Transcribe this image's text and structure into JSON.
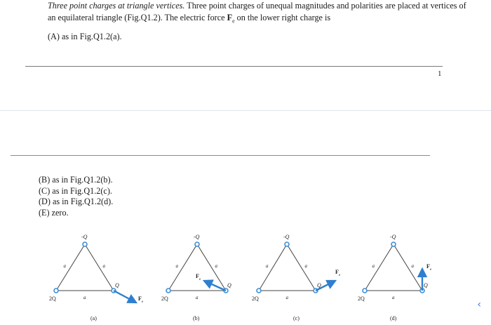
{
  "question": {
    "title": "Three point charges at triangle vertices.",
    "body": "Three point charges of unequal magnitudes and polarities are placed at vertices of an equilateral triangle (Fig.Q1.2). The electric force",
    "force_symbol": "F",
    "force_sub": "e",
    "body_end": "on the lower right charge is"
  },
  "options": {
    "a": "(A)  as in Fig.Q1.2(a).",
    "b": "(B)  as in Fig.Q1.2(b).",
    "c": "(C)  as in Fig.Q1.2(c).",
    "d": "(D)  as in Fig.Q1.2(d).",
    "e": "(E)  zero."
  },
  "page_number": "1",
  "figure": {
    "charge_top": "-Q",
    "charge_left": "2Q",
    "charge_right": "Q",
    "side_label": "a",
    "force_label": "F",
    "force_sub": "e",
    "captions": [
      "(a)",
      "(b)",
      "(c)",
      "(d)"
    ]
  },
  "colors": {
    "charge": "#3d8fd6",
    "vector": "#2f7fce",
    "triangle": "#444444"
  },
  "nav": {
    "icon": "chevron-up-icon",
    "glyph": "‹"
  }
}
